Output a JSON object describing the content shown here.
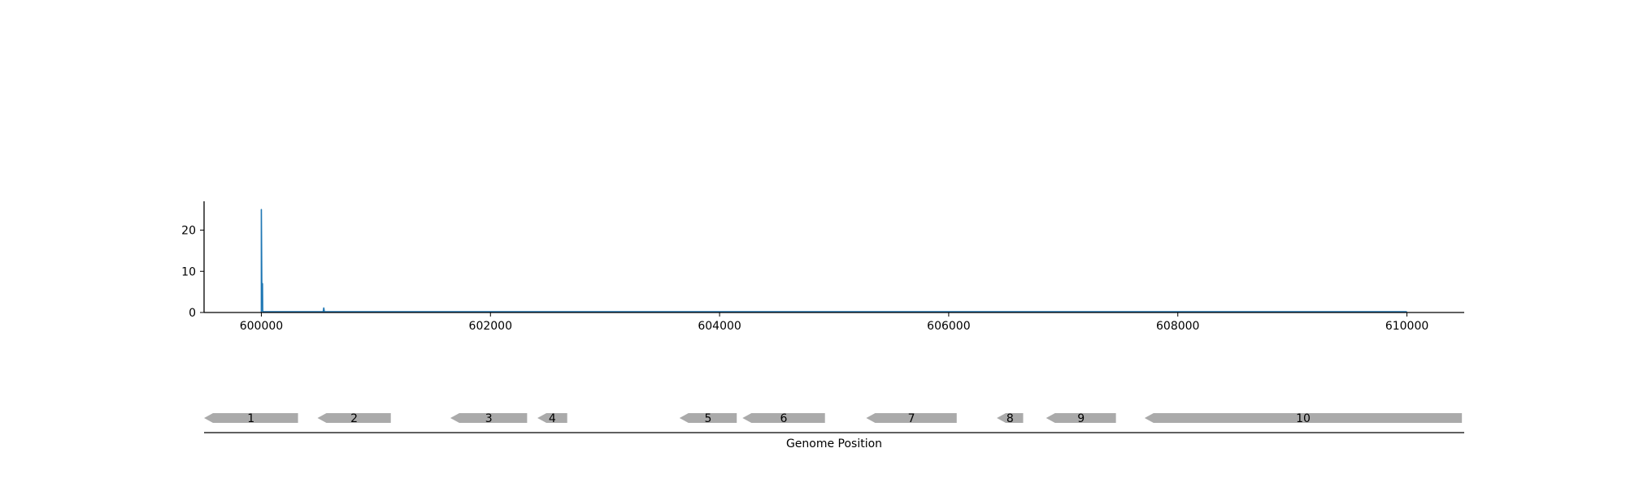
{
  "chart_data": [
    {
      "type": "line",
      "title": "",
      "xlabel": "",
      "ylabel": "",
      "xlim": [
        599500,
        610500
      ],
      "ylim": [
        0,
        27
      ],
      "x_ticks": [
        600000,
        602000,
        604000,
        606000,
        608000,
        610000
      ],
      "x_tick_labels": [
        "600000",
        "602000",
        "604000",
        "606000",
        "608000",
        "610000"
      ],
      "y_ticks": [
        0,
        10,
        20
      ],
      "y_tick_labels": [
        "0",
        "10",
        "20"
      ],
      "grid": false,
      "series": [
        {
          "color": "#1f77b4",
          "x": [
            600000,
            600000,
            600005,
            600010,
            600012,
            600015,
            600020,
            600030,
            600540,
            600545,
            600550,
            600560,
            610000
          ],
          "y": [
            0,
            25,
            3,
            7,
            0.3,
            0.2,
            0.2,
            0.2,
            0.2,
            1.1,
            0.2,
            0.2,
            0.2
          ]
        }
      ]
    },
    {
      "type": "gene-track",
      "xlabel": "Genome Position",
      "xlim": [
        599500,
        610500
      ],
      "color": "#aaaaaa",
      "genes": [
        {
          "label": "1",
          "start": 599500,
          "end": 600320,
          "strand": "-"
        },
        {
          "label": "2",
          "start": 600490,
          "end": 601130,
          "strand": "-"
        },
        {
          "label": "3",
          "start": 601650,
          "end": 602320,
          "strand": "-"
        },
        {
          "label": "4",
          "start": 602410,
          "end": 602670,
          "strand": "-"
        },
        {
          "label": "5",
          "start": 603650,
          "end": 604150,
          "strand": "-"
        },
        {
          "label": "6",
          "start": 604200,
          "end": 604920,
          "strand": "-"
        },
        {
          "label": "7",
          "start": 605280,
          "end": 606070,
          "strand": "-"
        },
        {
          "label": "8",
          "start": 606420,
          "end": 606650,
          "strand": "-"
        },
        {
          "label": "9",
          "start": 606850,
          "end": 607460,
          "strand": "-"
        },
        {
          "label": "10",
          "start": 607710,
          "end": 610480,
          "strand": "-"
        }
      ]
    }
  ]
}
